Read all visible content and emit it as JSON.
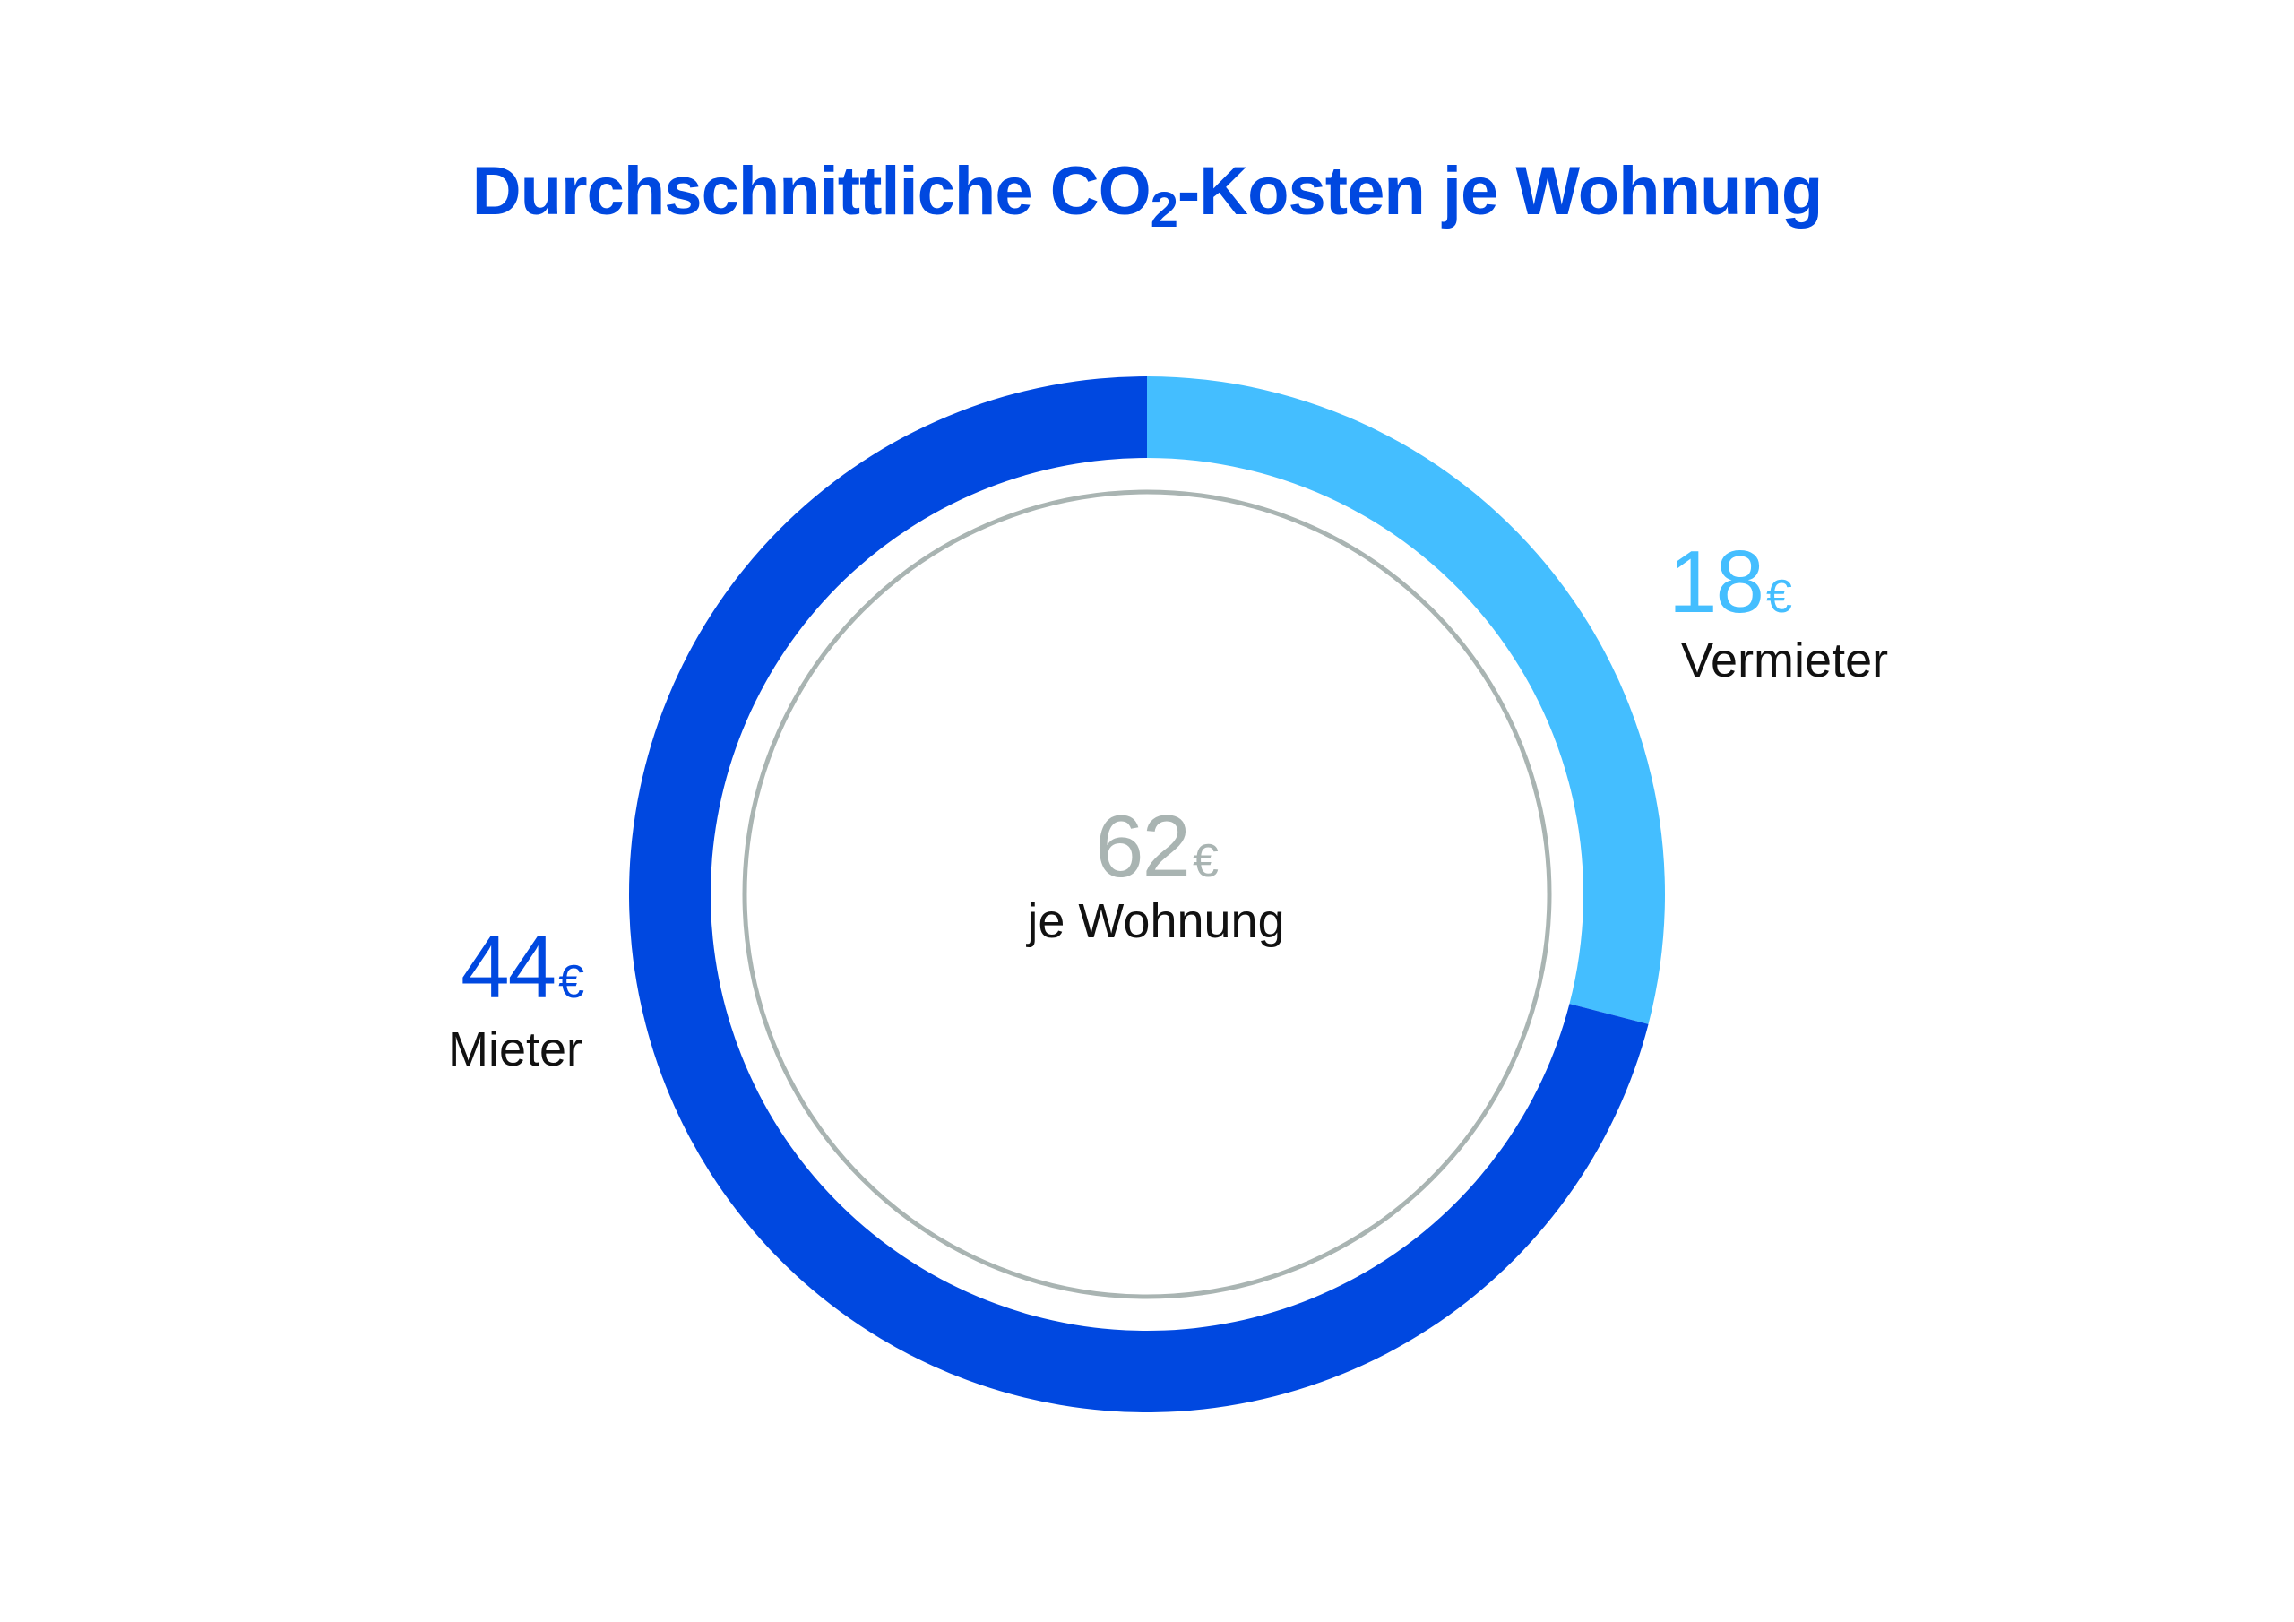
{
  "title": {
    "main": "Durchschnittliche CO",
    "subscript": "2",
    "rest": "-Kosten je Wohnung"
  },
  "colors": {
    "title": "#0048E0",
    "mieter": "#0048E0",
    "vermieter": "#44BEFF",
    "total": "#A9B4B2",
    "inner_ring": "#A9B4B2"
  },
  "chart_data": {
    "type": "pie",
    "total": {
      "value": "62",
      "unit": "€",
      "label": "je Wohnung"
    },
    "slices": [
      {
        "name": "Vermieter",
        "value": 18,
        "value_label": "18",
        "unit": "€"
      },
      {
        "name": "Mieter",
        "value": 44,
        "value_label": "44",
        "unit": "€"
      }
    ]
  }
}
